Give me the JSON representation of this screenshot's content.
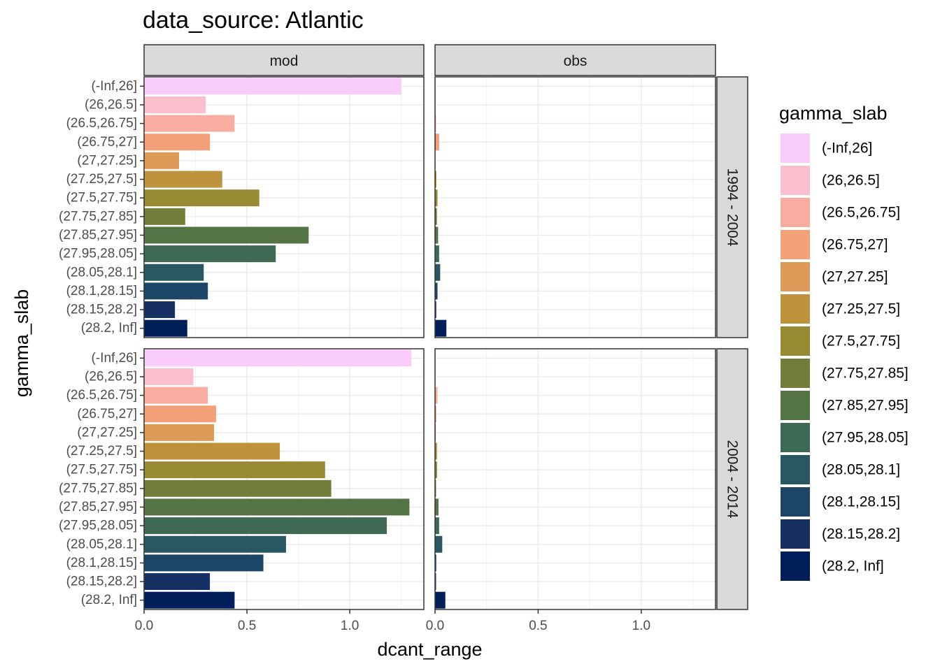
{
  "chart_data": {
    "type": "bar",
    "orientation": "horizontal",
    "title": "data_source: Atlantic",
    "xlabel": "dcant_range",
    "ylabel": "gamma_slab",
    "xlim": [
      0,
      1.36
    ],
    "x_ticks": [
      "0.0",
      "0.5",
      "1.0"
    ],
    "grid": true,
    "facet_columns": [
      "mod",
      "obs"
    ],
    "facet_rows": [
      "1994 - 2004",
      "2004 - 2014"
    ],
    "categories": [
      "(-Inf,26]",
      "(26,26.5]",
      "(26.5,26.75]",
      "(26.75,27]",
      "(27,27.25]",
      "(27.25,27.5]",
      "(27.5,27.75]",
      "(27.75,27.85]",
      "(27.85,27.95]",
      "(27.95,28.05]",
      "(28.05,28.1]",
      "(28.1,28.15]",
      "(28.15,28.2]",
      "(28.2, Inf]"
    ],
    "colors": [
      "#F9CCF9",
      "#FBBECE",
      "#F9ADA0",
      "#F4A078",
      "#DE9A58",
      "#BE933C",
      "#978A32",
      "#737D3A",
      "#557446",
      "#3E6A55",
      "#2A5862",
      "#1D4565",
      "#173063",
      "#001E5A"
    ],
    "legend": {
      "title": "gamma_slab",
      "position": "right"
    },
    "panels": [
      {
        "col": "mod",
        "row": "1994 - 2004",
        "values": [
          1.25,
          0.3,
          0.44,
          0.32,
          0.17,
          0.38,
          0.56,
          0.2,
          0.8,
          0.64,
          0.29,
          0.31,
          0.15,
          0.21
        ]
      },
      {
        "col": "obs",
        "row": "1994 - 2004",
        "values": [
          0.0,
          0.0,
          0.005,
          0.02,
          0.0,
          0.007,
          0.012,
          0.009,
          0.015,
          0.02,
          0.025,
          0.012,
          0.006,
          0.055
        ]
      },
      {
        "col": "mod",
        "row": "2004 - 2014",
        "values": [
          1.3,
          0.24,
          0.31,
          0.35,
          0.34,
          0.66,
          0.88,
          0.91,
          1.29,
          1.18,
          0.69,
          0.58,
          0.32,
          0.44
        ]
      },
      {
        "col": "obs",
        "row": "2004 - 2014",
        "values": [
          0.0,
          0.0,
          0.012,
          0.006,
          0.004,
          0.01,
          0.01,
          0.005,
          0.017,
          0.02,
          0.035,
          0.006,
          0.005,
          0.05
        ]
      }
    ]
  }
}
